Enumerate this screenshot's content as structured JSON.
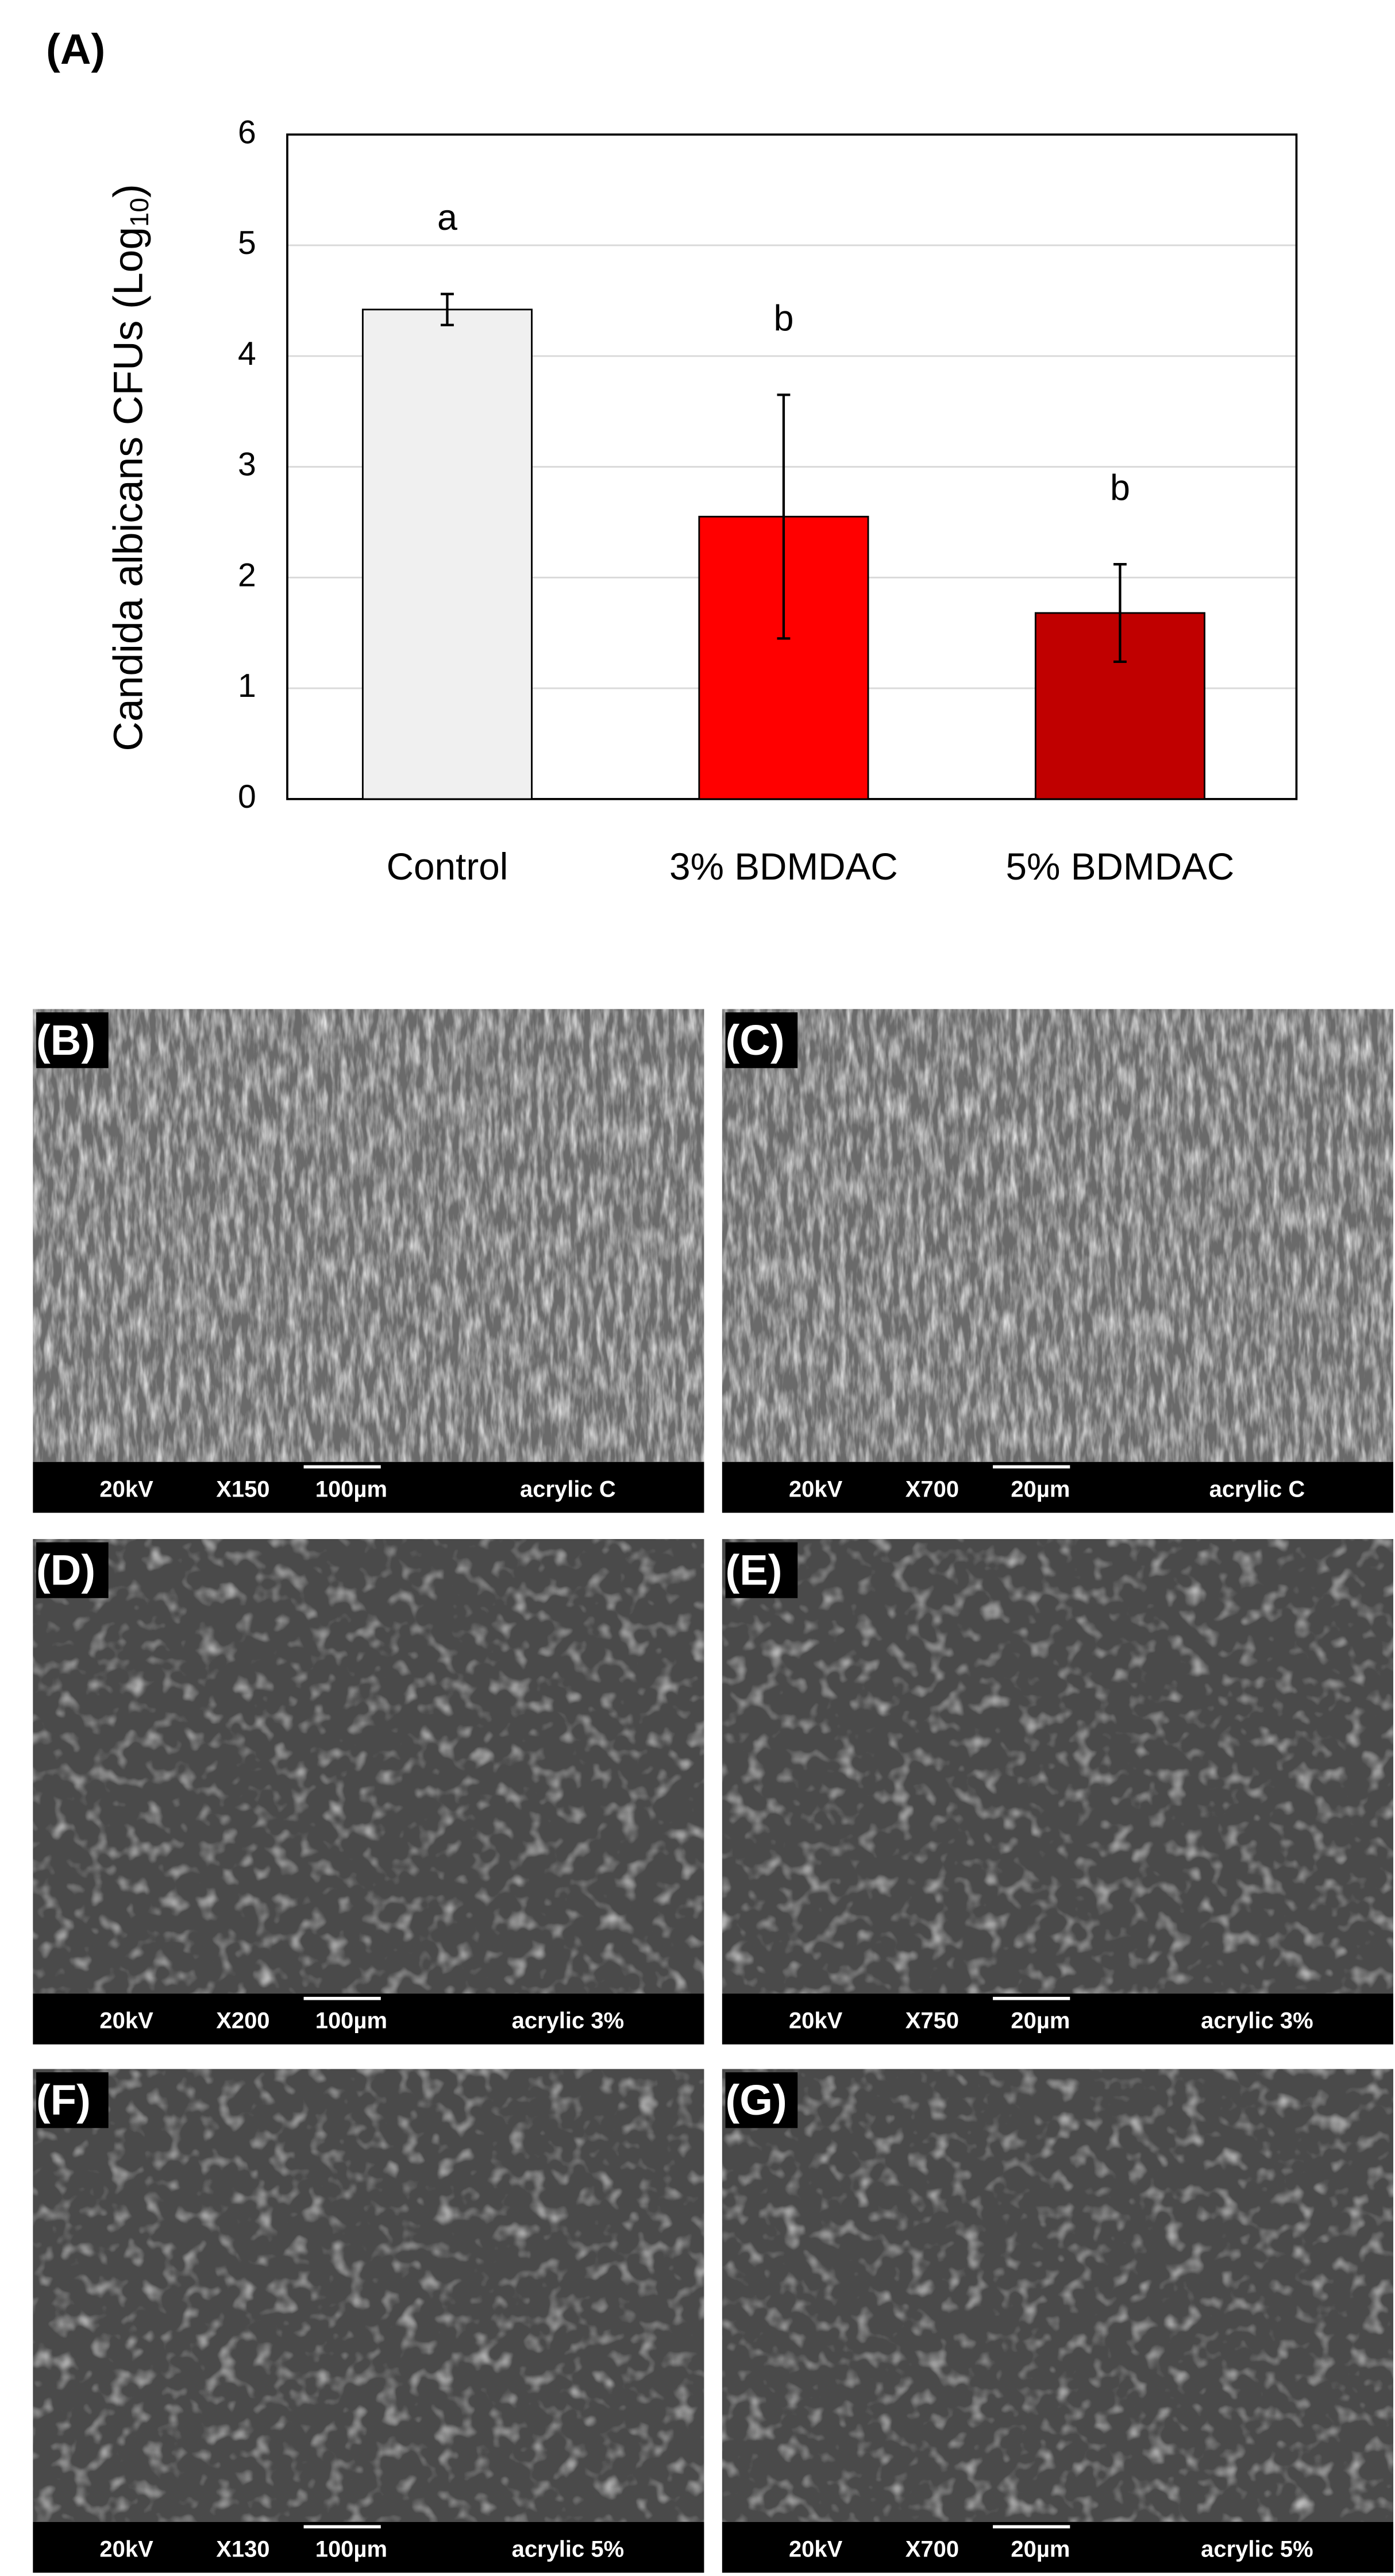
{
  "chart_data": {
    "type": "bar",
    "panel_label": "(A)",
    "y_label": {
      "text": "Candida albicans CFUs (Log",
      "subscript": "10",
      "end": ")"
    },
    "categories": [
      "Control",
      "3% BDMDAC",
      "5% BDMDAC"
    ],
    "values": [
      4.42,
      2.55,
      1.68
    ],
    "errors": [
      0.14,
      1.1,
      0.44
    ],
    "colors": [
      "#f0f0f0",
      "#ff0000",
      "#c00000"
    ],
    "annotations": [
      "a",
      "b",
      "b"
    ],
    "ylim": [
      0,
      6
    ],
    "yticks": [
      0,
      1,
      2,
      3,
      4,
      5,
      6
    ],
    "grid": true
  },
  "sem_panels": [
    {
      "label": "(B)",
      "voltage": "20kV",
      "magnification": "X150",
      "scale": "100µm",
      "sample": "acrylic C"
    },
    {
      "label": "(C)",
      "voltage": "20kV",
      "magnification": "X700",
      "scale": "20µm",
      "sample": "acrylic C"
    },
    {
      "label": "(D)",
      "voltage": "20kV",
      "magnification": "X200",
      "scale": "100µm",
      "sample": "acrylic 3%"
    },
    {
      "label": "(E)",
      "voltage": "20kV",
      "magnification": "X750",
      "scale": "20µm",
      "sample": "acrylic 3%"
    },
    {
      "label": "(F)",
      "voltage": "20kV",
      "magnification": "X130",
      "scale": "100µm",
      "sample": "acrylic 5%"
    },
    {
      "label": "(G)",
      "voltage": "20kV",
      "magnification": "X700",
      "scale": "20µm",
      "sample": "acrylic 5%"
    }
  ]
}
